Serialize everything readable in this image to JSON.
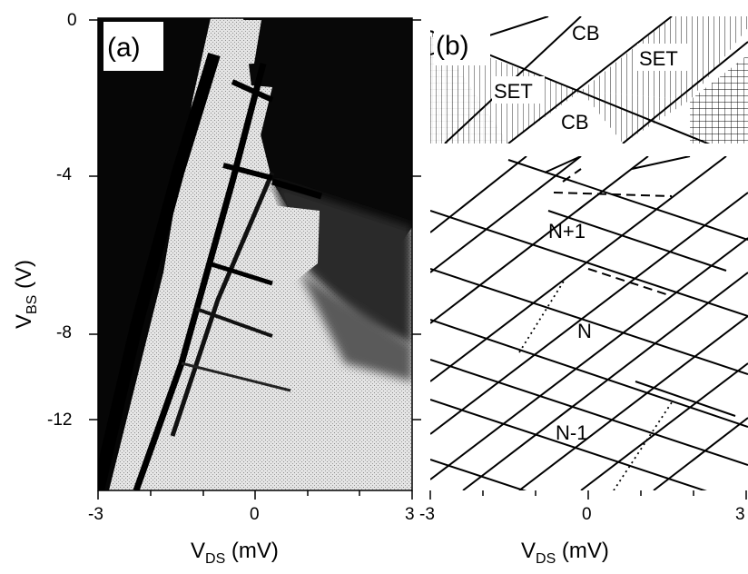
{
  "panel_a": {
    "label": "(a)",
    "y_axis_title": "V",
    "y_axis_sub": "BS",
    "y_axis_unit": " (V)",
    "x_axis_title": "V",
    "x_axis_sub": "DS",
    "x_axis_unit": " (mV)",
    "y_ticks": [
      "0",
      "-4",
      "-8",
      "-12"
    ],
    "x_ticks": [
      "-3",
      "0",
      "3"
    ]
  },
  "panel_b": {
    "label": "(b)",
    "x_axis_title": "V",
    "x_axis_sub": "DS",
    "x_axis_unit": " (mV)",
    "x_ticks": [
      "-3",
      "0",
      "3"
    ],
    "inset_labels": {
      "cb_top": "CB",
      "cb_bottom": "CB",
      "set_left": "SET",
      "set_right": "SET"
    },
    "main_labels": {
      "upper": "N+1",
      "middle": "N",
      "lower": "N-1"
    }
  },
  "chart_data": {
    "type": "heatmap",
    "x_range": [
      -3,
      3
    ],
    "y_range": [
      -14,
      0
    ],
    "x_ticks": [
      -3,
      0,
      3
    ],
    "y_ticks": [
      0,
      -4,
      -8,
      -12
    ],
    "grid": false
  }
}
